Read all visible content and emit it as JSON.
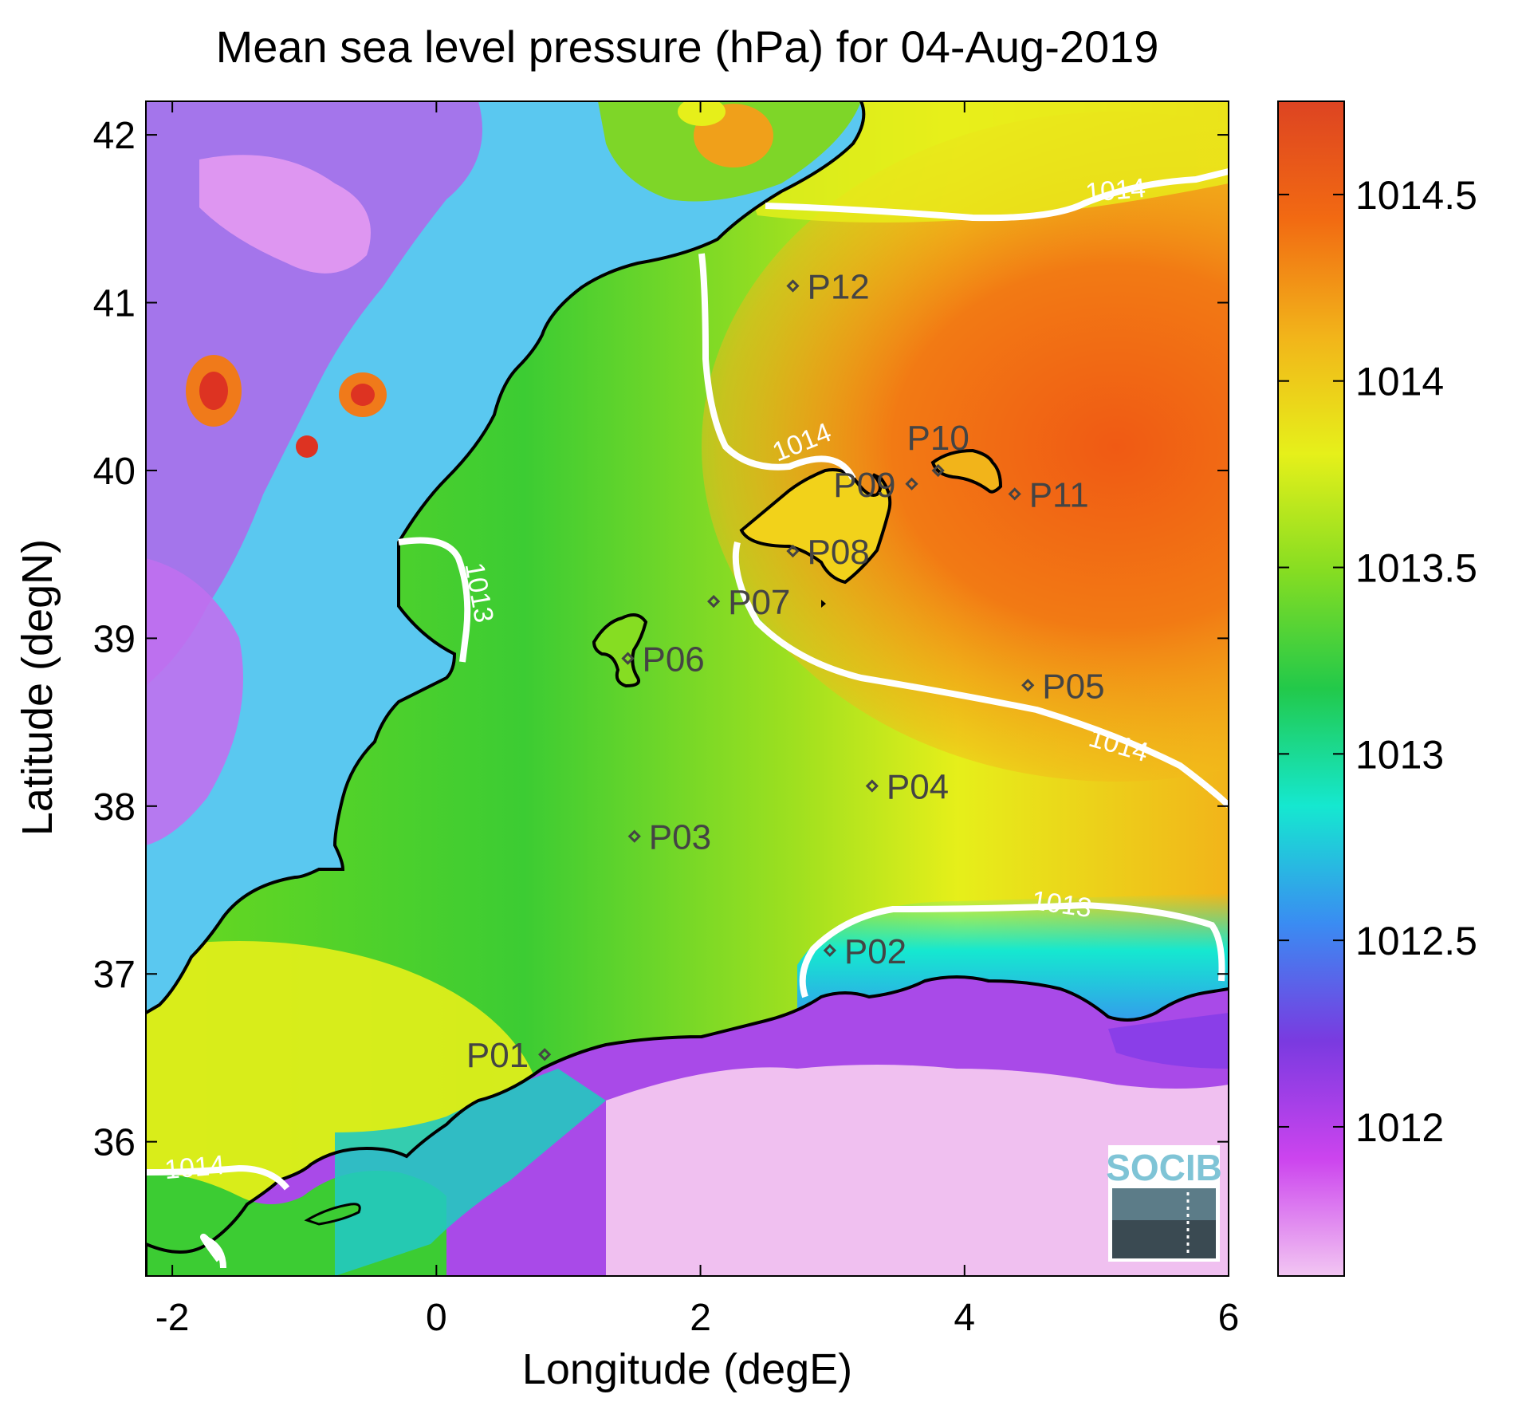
{
  "title": "Mean sea level pressure (hPa) for 04-Aug-2019",
  "x_axis": {
    "label": "Longitude (degE)",
    "range": [
      -2.2,
      6.0
    ],
    "ticks": [
      -2,
      0,
      2,
      4,
      6
    ],
    "tick_labels": [
      "-2",
      "0",
      "2",
      "4",
      "6"
    ]
  },
  "y_axis": {
    "label": "Latitude (degN)",
    "range": [
      35.2,
      42.2
    ],
    "ticks": [
      36,
      37,
      38,
      39,
      40,
      41,
      42
    ],
    "tick_labels": [
      "36",
      "37",
      "38",
      "39",
      "40",
      "41",
      "42"
    ]
  },
  "colorbar": {
    "range": [
      1011.6,
      1014.75
    ],
    "ticks": [
      1012,
      1012.5,
      1013,
      1013.5,
      1014,
      1014.5
    ],
    "tick_labels": [
      "1012",
      "1012.5",
      "1013",
      "1013.5",
      "1014",
      "1014.5"
    ],
    "colormap": [
      "#f2c6f2",
      "#cc44ee",
      "#7a3ae0",
      "#3a8cf2",
      "#15e8d0",
      "#22c94a",
      "#86dd22",
      "#e6f01a",
      "#f2b41a",
      "#f26a12",
      "#dd4422"
    ]
  },
  "stations": [
    {
      "label": "P01",
      "lon": 0.82,
      "lat": 36.52
    },
    {
      "label": "P02",
      "lon": 2.98,
      "lat": 37.14
    },
    {
      "label": "P03",
      "lon": 1.5,
      "lat": 37.82
    },
    {
      "label": "P04",
      "lon": 3.3,
      "lat": 38.12
    },
    {
      "label": "P05",
      "lon": 4.48,
      "lat": 38.72
    },
    {
      "label": "P06",
      "lon": 1.45,
      "lat": 38.88
    },
    {
      "label": "P07",
      "lon": 2.1,
      "lat": 39.22
    },
    {
      "label": "P08",
      "lon": 2.7,
      "lat": 39.52
    },
    {
      "label": "P09",
      "lon": 3.6,
      "lat": 39.92
    },
    {
      "label": "P10",
      "lon": 3.8,
      "lat": 40.0
    },
    {
      "label": "P11",
      "lon": 4.38,
      "lat": 39.86
    },
    {
      "label": "P12",
      "lon": 2.7,
      "lat": 41.1
    }
  ],
  "contours": [
    {
      "label": "1014"
    },
    {
      "label": "1014"
    },
    {
      "label": "1014"
    },
    {
      "label": "1013"
    },
    {
      "label": "1013"
    },
    {
      "label": "1014"
    }
  ],
  "logo": {
    "text": "SOCIB"
  }
}
